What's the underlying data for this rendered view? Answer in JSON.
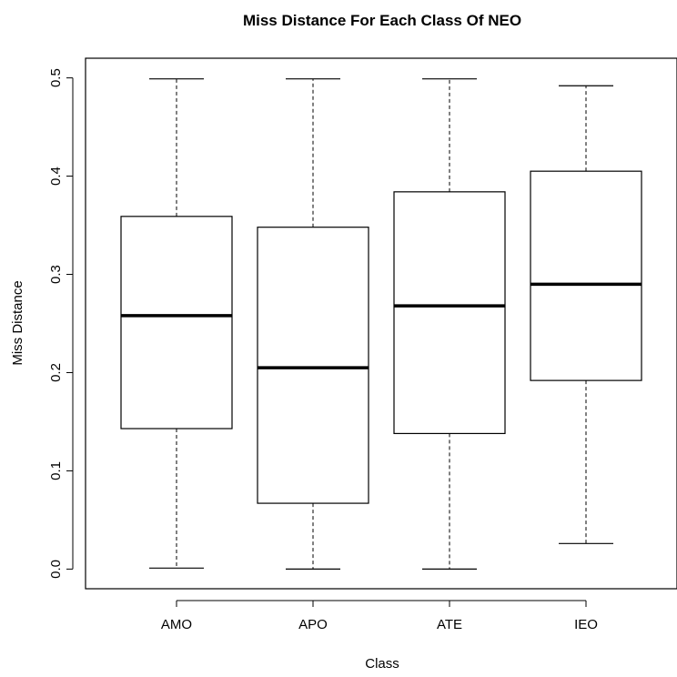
{
  "chart_data": {
    "type": "boxplot",
    "title": "Miss Distance For Each Class Of NEO",
    "xlabel": "Class",
    "ylabel": "Miss Distance",
    "categories": [
      "AMO",
      "APO",
      "ATE",
      "IEO"
    ],
    "boxes": [
      {
        "category": "AMO",
        "min": 0.001,
        "q1": 0.143,
        "median": 0.258,
        "q3": 0.359,
        "max": 0.499
      },
      {
        "category": "APO",
        "min": 0.0,
        "q1": 0.067,
        "median": 0.205,
        "q3": 0.348,
        "max": 0.499
      },
      {
        "category": "ATE",
        "min": 0.0,
        "q1": 0.138,
        "median": 0.268,
        "q3": 0.384,
        "max": 0.499
      },
      {
        "category": "IEO",
        "min": 0.026,
        "q1": 0.192,
        "median": 0.29,
        "q3": 0.405,
        "max": 0.492
      }
    ],
    "yticks": [
      "0.0",
      "0.1",
      "0.2",
      "0.3",
      "0.4",
      "0.5"
    ],
    "ytick_values": [
      0.0,
      0.1,
      0.2,
      0.3,
      0.4,
      0.5
    ],
    "ylim": [
      -0.02,
      0.52
    ],
    "grid": false,
    "colors": {
      "box_fill": "#ffffff",
      "stroke": "#000000"
    }
  }
}
